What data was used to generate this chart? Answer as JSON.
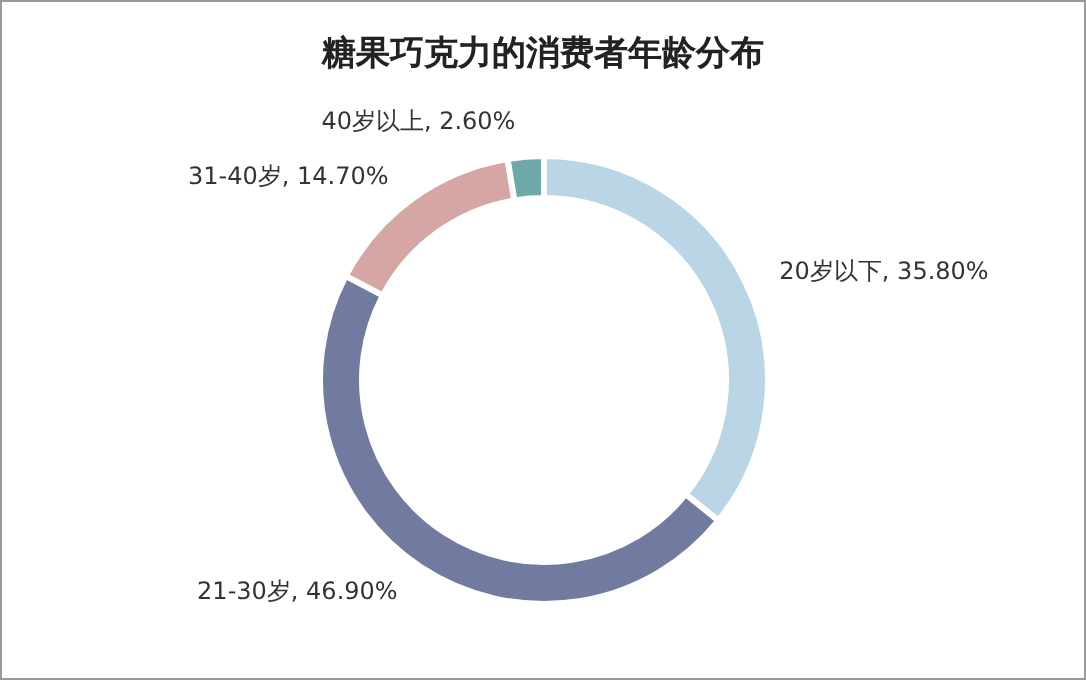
{
  "chart_data": {
    "type": "donut",
    "title": "糖果巧克力的消费者年龄分布",
    "categories": [
      "20岁以下",
      "21-30岁",
      "31-40岁",
      "40岁以上"
    ],
    "values": [
      35.8,
      46.9,
      14.7,
      2.6
    ],
    "value_labels": [
      "35.80%",
      "46.90%",
      "14.70%",
      "2.60%"
    ],
    "colors": [
      "#b9d5e6",
      "#717b9f",
      "#d5a6a4",
      "#6ea9a9"
    ],
    "legend": false
  }
}
